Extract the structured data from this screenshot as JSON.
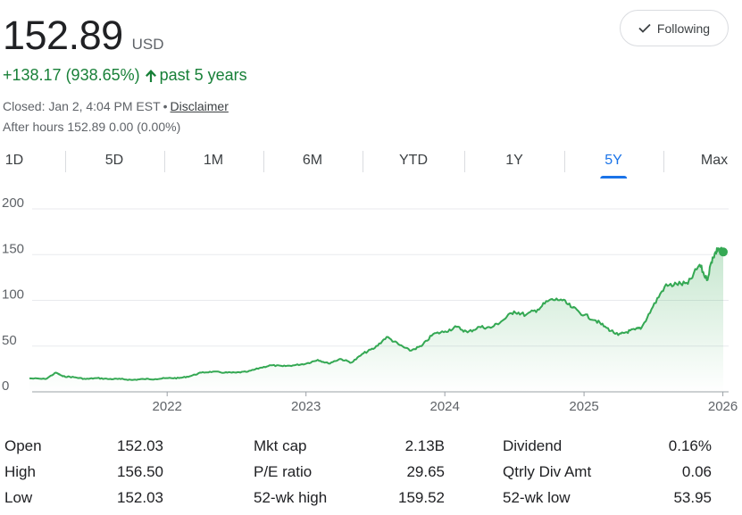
{
  "quote": {
    "price": "152.89",
    "currency": "USD",
    "change": "+138.17 (938.65%)",
    "change_period": "past 5 years",
    "closed_prefix": "Closed: Jan 2, 4:04 PM EST",
    "separator": "•",
    "disclaimer": "Disclaimer",
    "after_hours_label": "After hours 152.89",
    "after_hours_change": "0.00 (0.00%)"
  },
  "follow_button": {
    "label": "Following",
    "icon": "check-icon"
  },
  "range_tabs": [
    {
      "label": "1D",
      "active": false
    },
    {
      "label": "5D",
      "active": false
    },
    {
      "label": "1M",
      "active": false
    },
    {
      "label": "6M",
      "active": false
    },
    {
      "label": "YTD",
      "active": false
    },
    {
      "label": "1Y",
      "active": false
    },
    {
      "label": "5Y",
      "active": true
    },
    {
      "label": "Max",
      "active": false
    }
  ],
  "colors": {
    "accent": "#1a73e8",
    "positive": "#188038",
    "line": "#34a853",
    "text": "#202124",
    "muted": "#5f6368"
  },
  "chart_data": {
    "type": "area",
    "x_type": "date",
    "ylim": [
      0,
      200
    ],
    "yticks": [
      "0",
      "50",
      "100",
      "150",
      "200"
    ],
    "xlim": [
      "2021-01-04",
      "2026-01-02"
    ],
    "xticks": [
      "2022",
      "2023",
      "2024",
      "2025",
      "2026"
    ],
    "grid": "horizontal",
    "series": [
      {
        "x": [
          "2021-01-04",
          "2021-02-15",
          "2021-03-15",
          "2021-04-01",
          "2021-05-01",
          "2021-06-01",
          "2021-07-01",
          "2021-08-01",
          "2021-09-01",
          "2021-10-01",
          "2021-11-01",
          "2021-12-01",
          "2022-01-03",
          "2022-02-01",
          "2022-03-01",
          "2022-04-01",
          "2022-05-01",
          "2022-06-01",
          "2022-07-01",
          "2022-08-01",
          "2022-09-01",
          "2022-10-01",
          "2022-11-01",
          "2022-12-01",
          "2023-01-03",
          "2023-02-01",
          "2023-03-01",
          "2023-04-01",
          "2023-05-01",
          "2023-06-01",
          "2023-07-01",
          "2023-08-01",
          "2023-09-01",
          "2023-10-01",
          "2023-11-01",
          "2023-12-01",
          "2024-01-02",
          "2024-02-01",
          "2024-03-01",
          "2024-04-01",
          "2024-05-01",
          "2024-06-01",
          "2024-07-01",
          "2024-08-01",
          "2024-09-01",
          "2024-10-01",
          "2024-11-01",
          "2024-12-01",
          "2025-01-02",
          "2025-02-01",
          "2025-03-01",
          "2025-04-01",
          "2025-04-20",
          "2025-05-15",
          "2025-06-01",
          "2025-07-01",
          "2025-08-01",
          "2025-09-01",
          "2025-10-01",
          "2025-11-01",
          "2025-11-20",
          "2025-12-05",
          "2025-12-20",
          "2026-01-02"
        ],
        "y": [
          14.7,
          14,
          21,
          17,
          16,
          14,
          15,
          14,
          14,
          13,
          14,
          14,
          15,
          15,
          17,
          21,
          22,
          21,
          21,
          22,
          26,
          29,
          28,
          29,
          31,
          35,
          31,
          36,
          32,
          42,
          48,
          60,
          52,
          45,
          50,
          63,
          66,
          71,
          65,
          71,
          70,
          78,
          88,
          84,
          90,
          100,
          101,
          92,
          84,
          78,
          70,
          62,
          65,
          68,
          70,
          93,
          115,
          118,
          118,
          139,
          122,
          147,
          157,
          152.89
        ]
      }
    ]
  },
  "stats": [
    [
      {
        "label": "Open",
        "value": "152.03"
      },
      {
        "label": "Mkt cap",
        "value": "2.13B"
      },
      {
        "label": "Dividend",
        "value": "0.16%"
      }
    ],
    [
      {
        "label": "High",
        "value": "156.50"
      },
      {
        "label": "P/E ratio",
        "value": "29.65"
      },
      {
        "label": "Qtrly Div Amt",
        "value": "0.06"
      }
    ],
    [
      {
        "label": "Low",
        "value": "152.03"
      },
      {
        "label": "52-wk high",
        "value": "159.52"
      },
      {
        "label": "52-wk low",
        "value": "53.95"
      }
    ]
  ]
}
